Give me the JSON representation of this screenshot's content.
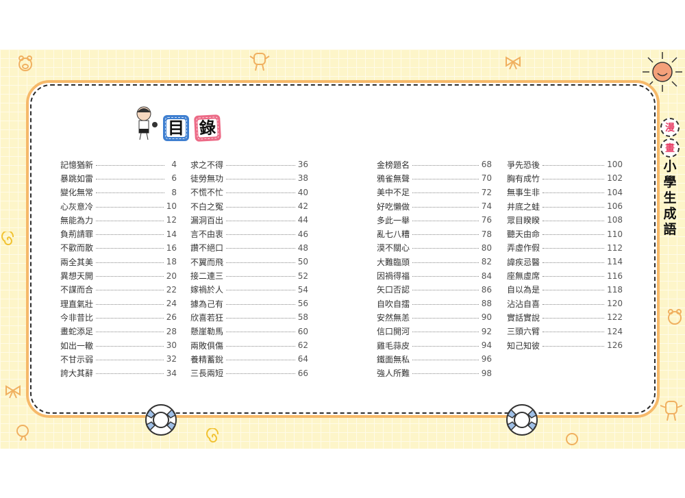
{
  "title": {
    "char1": "目",
    "char2": "錄"
  },
  "side_title": {
    "badge1": "漫",
    "badge2": "畫",
    "chars": [
      "小",
      "學",
      "生",
      "成",
      "語"
    ]
  },
  "colors": {
    "background_grid": "#fdf5c9",
    "panel_border": "#f6b96a",
    "title_blue": "#3f7fd0",
    "title_pink": "#ec6a86",
    "badge_text": "#e8456b"
  },
  "toc": [
    [
      {
        "title": "記憶猶新",
        "page": "4"
      },
      {
        "title": "暴跳如雷",
        "page": "6"
      },
      {
        "title": "變化無常",
        "page": "8"
      },
      {
        "title": "心灰意冷",
        "page": "10"
      },
      {
        "title": "無能為力",
        "page": "12"
      },
      {
        "title": "負荊請罪",
        "page": "14"
      },
      {
        "title": "不歡而散",
        "page": "16"
      },
      {
        "title": "兩全其美",
        "page": "18"
      },
      {
        "title": "異想天開",
        "page": "20"
      },
      {
        "title": "不謀而合",
        "page": "22"
      },
      {
        "title": "理直氣壯",
        "page": "24"
      },
      {
        "title": "今非昔比",
        "page": "26"
      },
      {
        "title": "畫蛇添足",
        "page": "28"
      },
      {
        "title": "如出一轍",
        "page": "30"
      },
      {
        "title": "不甘示弱",
        "page": "32"
      },
      {
        "title": "誇大其辭",
        "page": "34"
      }
    ],
    [
      {
        "title": "求之不得",
        "page": "36"
      },
      {
        "title": "徒勞無功",
        "page": "38"
      },
      {
        "title": "不慌不忙",
        "page": "40"
      },
      {
        "title": "不白之冤",
        "page": "42"
      },
      {
        "title": "漏洞百出",
        "page": "44"
      },
      {
        "title": "言不由衷",
        "page": "46"
      },
      {
        "title": "讚不絕口",
        "page": "48"
      },
      {
        "title": "不翼而飛",
        "page": "50"
      },
      {
        "title": "接二連三",
        "page": "52"
      },
      {
        "title": "嫁禍於人",
        "page": "54"
      },
      {
        "title": "據為己有",
        "page": "56"
      },
      {
        "title": "欣喜若狂",
        "page": "58"
      },
      {
        "title": "懸崖勒馬",
        "page": "60"
      },
      {
        "title": "兩敗俱傷",
        "page": "62"
      },
      {
        "title": "養精蓄銳",
        "page": "64"
      },
      {
        "title": "三長兩短",
        "page": "66"
      }
    ],
    [
      {
        "title": "金榜題名",
        "page": "68"
      },
      {
        "title": "鴉雀無聲",
        "page": "70"
      },
      {
        "title": "美中不足",
        "page": "72"
      },
      {
        "title": "好吃懶做",
        "page": "74"
      },
      {
        "title": "多此一舉",
        "page": "76"
      },
      {
        "title": "亂七八糟",
        "page": "78"
      },
      {
        "title": "漠不關心",
        "page": "80"
      },
      {
        "title": "大難臨頭",
        "page": "82"
      },
      {
        "title": "因禍得福",
        "page": "84"
      },
      {
        "title": "矢口否認",
        "page": "86"
      },
      {
        "title": "自吹自擂",
        "page": "88"
      },
      {
        "title": "安然無恙",
        "page": "90"
      },
      {
        "title": "信口開河",
        "page": "92"
      },
      {
        "title": "雞毛蒜皮",
        "page": "94"
      },
      {
        "title": "鐵面無私",
        "page": "96"
      },
      {
        "title": "強人所難",
        "page": "98"
      }
    ],
    [
      {
        "title": "爭先恐後",
        "page": "100"
      },
      {
        "title": "胸有成竹",
        "page": "102"
      },
      {
        "title": "無事生非",
        "page": "104"
      },
      {
        "title": "井底之蛙",
        "page": "106"
      },
      {
        "title": "眾目睽睽",
        "page": "108"
      },
      {
        "title": "聽天由命",
        "page": "110"
      },
      {
        "title": "弄虛作假",
        "page": "112"
      },
      {
        "title": "諱疾忌醫",
        "page": "114"
      },
      {
        "title": "座無虛席",
        "page": "116"
      },
      {
        "title": "自以為是",
        "page": "118"
      },
      {
        "title": "沾沾自喜",
        "page": "120"
      },
      {
        "title": "實話實說",
        "page": "122"
      },
      {
        "title": "三頭六臂",
        "page": "124"
      },
      {
        "title": "知己知彼",
        "page": "126"
      }
    ]
  ]
}
